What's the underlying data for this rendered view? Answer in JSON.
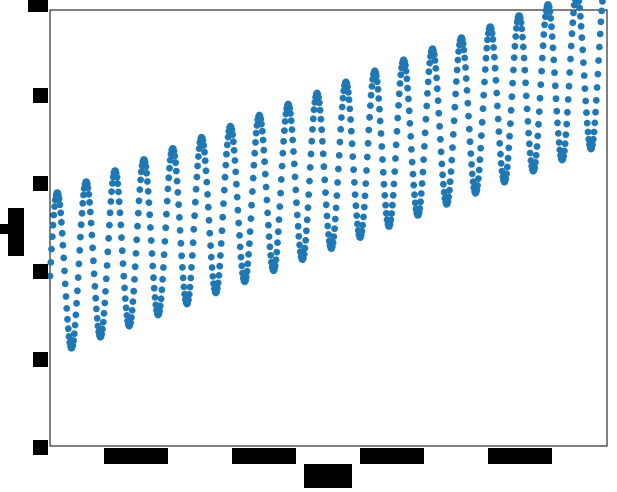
{
  "chart_data": {
    "type": "scatter",
    "title": "",
    "xlabel": "",
    "ylabel": "",
    "xlim": [
      0,
      1
    ],
    "ylim": [
      0,
      1
    ],
    "grid": false,
    "legend": "none",
    "x_ticks": [
      0.16,
      0.39,
      0.62,
      0.85
    ],
    "y_ticks": [
      0,
      0.2,
      0.4,
      0.6,
      0.8,
      1.0
    ],
    "marker_color": "#1f77b4",
    "trend": {
      "start": 0.39,
      "slope": 0.49
    },
    "oscillation": {
      "cycles": 19.3,
      "amplitude": 0.185,
      "phase_deg": 0
    },
    "points_per_cycle": 38,
    "points": []
  }
}
